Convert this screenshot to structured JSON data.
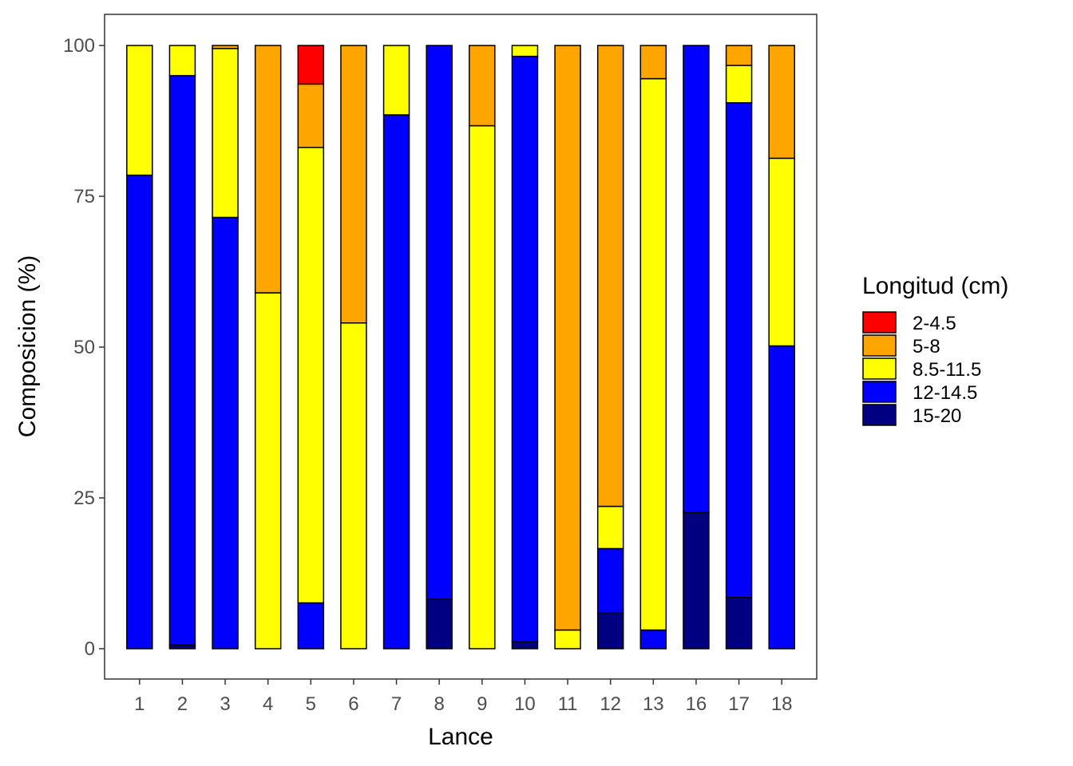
{
  "chart_data": {
    "type": "bar",
    "stacked": true,
    "percent": true,
    "title": "",
    "xlabel": "Lance",
    "ylabel": "Composicion (%)",
    "ylim": [
      -5,
      105
    ],
    "yticks": [
      0,
      25,
      50,
      75,
      100
    ],
    "grid": false,
    "legend_title": "Longitud (cm)",
    "legend_position": "right",
    "categories": [
      "1",
      "2",
      "3",
      "4",
      "5",
      "6",
      "7",
      "8",
      "9",
      "10",
      "11",
      "12",
      "13",
      "16",
      "17",
      "18"
    ],
    "series": [
      {
        "name": "15-20",
        "color": "#000080",
        "values": [
          0,
          0.6,
          0,
          0,
          0,
          0,
          0,
          8.2,
          0,
          1.2,
          0,
          6.0,
          0,
          22.6,
          8.5,
          0
        ]
      },
      {
        "name": "12-14.5",
        "color": "#0000FF",
        "values": [
          78.5,
          94.4,
          71.5,
          0,
          7.6,
          0,
          88.5,
          91.8,
          0,
          97.0,
          0,
          10.6,
          3.1,
          77.4,
          82.0,
          50.2
        ]
      },
      {
        "name": "8.5-11.5",
        "color": "#FFFF00",
        "values": [
          21.5,
          5.0,
          28.0,
          59.0,
          75.5,
          54.0,
          11.5,
          0,
          86.7,
          1.8,
          3.1,
          7.0,
          91.4,
          0,
          6.2,
          31.1
        ]
      },
      {
        "name": "5-8",
        "color": "#FFA500",
        "values": [
          0,
          0,
          0.5,
          41.0,
          10.5,
          46.0,
          0,
          0,
          13.3,
          0,
          96.9,
          76.4,
          5.5,
          0,
          3.3,
          18.7
        ]
      },
      {
        "name": "2-4.5",
        "color": "#FF0000",
        "values": [
          0,
          0,
          0,
          0,
          6.4,
          0,
          0,
          0,
          0,
          0,
          0,
          0,
          0,
          0,
          0,
          0
        ]
      }
    ],
    "legend_order": [
      "2-4.5",
      "5-8",
      "8.5-11.5",
      "12-14.5",
      "15-20"
    ]
  }
}
